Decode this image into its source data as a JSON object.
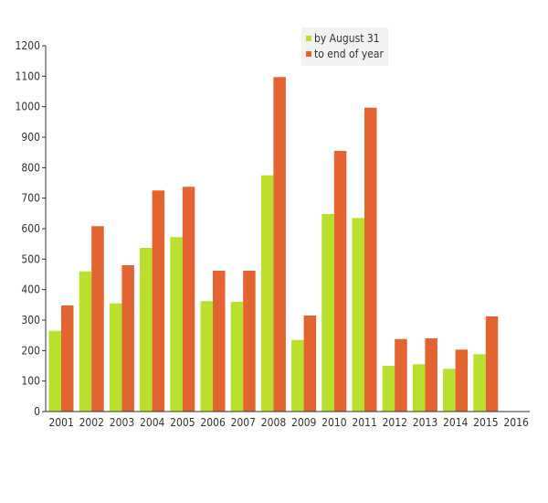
{
  "chart_data": {
    "type": "bar",
    "title": "",
    "xlabel": "",
    "ylabel": "",
    "ylim": [
      0,
      1200
    ],
    "yticks": [
      0,
      100,
      200,
      300,
      400,
      500,
      600,
      700,
      800,
      900,
      1000,
      1100,
      1200
    ],
    "categories": [
      "2001",
      "2002",
      "2003",
      "2004",
      "2005",
      "2006",
      "2007",
      "2008",
      "2009",
      "2010",
      "2011",
      "2012",
      "2013",
      "2014",
      "2015",
      "2016"
    ],
    "series": [
      {
        "name": "by August 31",
        "color": "#b8e02c",
        "values": [
          265,
          460,
          355,
          537,
          572,
          362,
          360,
          775,
          235,
          648,
          635,
          150,
          155,
          140,
          188,
          0
        ]
      },
      {
        "name": "to end of year",
        "color": "#e36430",
        "values": [
          348,
          608,
          480,
          725,
          737,
          462,
          462,
          1097,
          315,
          855,
          997,
          238,
          240,
          203,
          312,
          0
        ]
      }
    ],
    "legend": {
      "position": "top-right"
    },
    "grid": false
  }
}
